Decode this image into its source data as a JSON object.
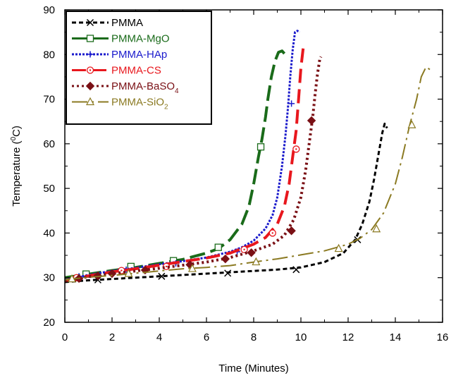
{
  "chart_data": {
    "type": "line",
    "xlabel": "Time (Minutes)",
    "ylabel": "Temperature (",
    "ylabel_sup": "0",
    "ylabel_tail": "C)",
    "xlim": [
      0,
      16
    ],
    "ylim": [
      20,
      90
    ],
    "xticks": [
      0,
      2,
      4,
      6,
      8,
      10,
      12,
      14,
      16
    ],
    "yticks": [
      20,
      30,
      40,
      50,
      60,
      70,
      80,
      90
    ],
    "grid": false,
    "legend_position": "top-left",
    "series": [
      {
        "name": "PMMA",
        "color": "#000000",
        "dash": "6,4",
        "width": 3,
        "marker": "x",
        "x": [
          0,
          1,
          2,
          3,
          4,
          5,
          6,
          7,
          8,
          9,
          10,
          11,
          11.8,
          12.3,
          12.6,
          12.9,
          13.1,
          13.3,
          13.45,
          13.55,
          13.65
        ],
        "y": [
          29,
          29.4,
          29.7,
          30,
          30.3,
          30.6,
          30.9,
          31.2,
          31.5,
          31.8,
          32.3,
          33.5,
          35.5,
          38.5,
          42,
          47,
          52,
          58,
          62.5,
          64.5,
          63.5
        ],
        "marker_x": [
          1.4,
          4.1,
          6.9,
          9.8,
          12.4
        ],
        "marker_y": [
          29.5,
          30.3,
          31.0,
          31.8,
          38.5
        ]
      },
      {
        "name": "PMMA-MgO",
        "color": "#1a6b1a",
        "dash": "22,8",
        "width": 4,
        "marker": "square",
        "x": [
          0,
          1,
          2,
          3,
          4,
          5,
          6,
          6.5,
          7,
          7.5,
          7.8,
          8.0,
          8.2,
          8.35,
          8.5,
          8.6,
          8.75,
          8.9,
          9.05,
          9.2,
          9.3
        ],
        "y": [
          30,
          30.8,
          31.6,
          32.3,
          33.2,
          34.1,
          35.5,
          36.5,
          38.5,
          42,
          46,
          51,
          57,
          61,
          66,
          70,
          75,
          78.5,
          80.5,
          80.8,
          80.2
        ],
        "marker_x": [
          0.9,
          2.8,
          4.6,
          6.5,
          8.3
        ],
        "marker_y": [
          30.8,
          32.5,
          33.8,
          36.8,
          59.3
        ]
      },
      {
        "name": "PMMA-HAp",
        "color": "#1a1acc",
        "dash": "3,2",
        "width": 3,
        "marker": "plus",
        "x": [
          0,
          1,
          2,
          3,
          4,
          5,
          6,
          7,
          7.5,
          8,
          8.5,
          8.8,
          9.0,
          9.2,
          9.35,
          9.45,
          9.55,
          9.65,
          9.75,
          9.85,
          9.95
        ],
        "y": [
          29.5,
          30.6,
          31.5,
          32.2,
          33,
          33.7,
          34.5,
          35.8,
          36.8,
          38.3,
          41,
          44,
          48,
          55,
          62,
          68,
          75,
          81,
          85,
          85.3,
          85
        ],
        "marker_x": [
          0.6,
          2.6,
          4.7,
          7.3,
          9.6
        ],
        "marker_y": [
          30.3,
          31.8,
          33.2,
          35.8,
          69
        ]
      },
      {
        "name": "PMMA-CS",
        "color": "#e8171d",
        "dash": "20,9",
        "width": 4,
        "marker": "circle",
        "x": [
          0,
          1,
          2,
          3,
          4,
          5,
          6,
          7,
          7.5,
          8,
          8.5,
          9,
          9.3,
          9.5,
          9.65,
          9.8,
          9.9,
          10.0,
          10.1,
          10.2
        ],
        "y": [
          29.3,
          30.4,
          31.3,
          32,
          32.8,
          33.6,
          34.4,
          35.5,
          36.5,
          37.5,
          39,
          42,
          46,
          51,
          57,
          63,
          70,
          77,
          81.5,
          81.8
        ],
        "marker_x": [
          0.5,
          2.4,
          4.3,
          7.6,
          8.8,
          9.8
        ],
        "marker_y": [
          30,
          31.6,
          32.5,
          36.3,
          40,
          58.8
        ]
      },
      {
        "name": "PMMA-BaSO",
        "name_sub": "4",
        "color": "#7a1015",
        "dash": "3,4",
        "width": 4,
        "marker": "diamond",
        "x": [
          0,
          1,
          2,
          3,
          4,
          5,
          6,
          7,
          8,
          8.8,
          9.3,
          9.7,
          10.0,
          10.2,
          10.35,
          10.5,
          10.6,
          10.7,
          10.8,
          10.85
        ],
        "y": [
          29.3,
          30.2,
          30.9,
          31.5,
          32.1,
          32.8,
          33.5,
          34.5,
          36,
          37.5,
          39.5,
          43,
          48,
          54,
          60,
          66,
          71,
          75.5,
          79,
          79.5
        ],
        "marker_x": [
          0.6,
          1.4,
          2.0,
          3.4,
          5.3,
          6.8,
          7.9,
          9.6,
          10.45
        ],
        "marker_y": [
          29.8,
          30.4,
          30.9,
          31.7,
          32.9,
          34.2,
          35.6,
          40.5,
          65.2
        ]
      },
      {
        "name": "PMMA-SiO",
        "name_sub": "2",
        "color": "#8b7a22",
        "dash": "22,6,3,6",
        "width": 2,
        "marker": "triangle",
        "x": [
          0,
          1,
          2,
          3,
          4,
          5,
          6,
          7,
          8,
          9,
          10,
          11,
          12,
          12.5,
          13,
          13.5,
          14,
          14.3,
          14.6,
          14.9,
          15.1,
          15.3,
          15.5
        ],
        "y": [
          29.5,
          30.1,
          30.5,
          31,
          31.5,
          32,
          32.3,
          32.7,
          33.5,
          34.2,
          35.1,
          36,
          37.5,
          38.8,
          40.8,
          44.5,
          51,
          57,
          64,
          70,
          75,
          77.2,
          76.5
        ],
        "marker_x": [
          0.3,
          2.7,
          5.4,
          8.1,
          11.6,
          13.2,
          14.7
        ],
        "marker_y": [
          29.7,
          30.9,
          32,
          33.5,
          36.5,
          40.9,
          64.2
        ]
      }
    ]
  }
}
